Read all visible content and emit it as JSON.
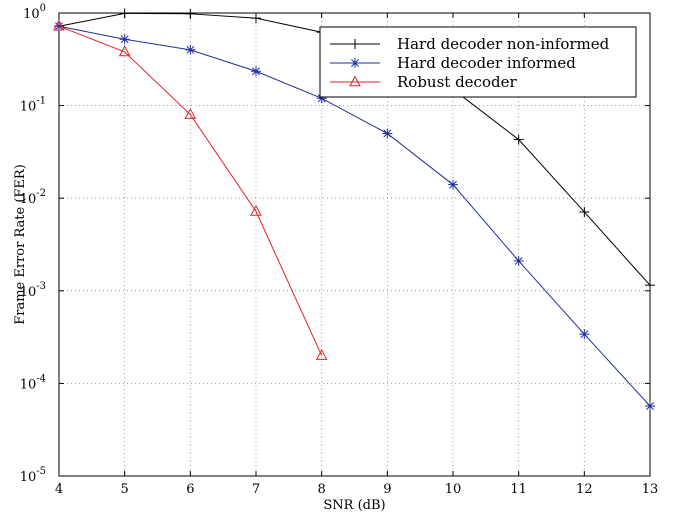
{
  "chart_data": {
    "type": "line",
    "xlabel": "SNR (dB)",
    "ylabel": "Frame Error Rate (FER)",
    "xlim": [
      4,
      13
    ],
    "ylim": [
      1e-05,
      1
    ],
    "yscale": "log",
    "grid": true,
    "legend_position": "top-right",
    "x_ticks": [
      "4",
      "5",
      "6",
      "7",
      "8",
      "9",
      "10",
      "11",
      "12",
      "13"
    ],
    "y_ticks": [
      {
        "base": "10",
        "exp": "0"
      },
      {
        "base": "10",
        "exp": "-1"
      },
      {
        "base": "10",
        "exp": "-2"
      },
      {
        "base": "10",
        "exp": "-3"
      },
      {
        "base": "10",
        "exp": "-4"
      },
      {
        "base": "10",
        "exp": "-5"
      }
    ],
    "series": [
      {
        "name": "Hard decoder non-informed",
        "color": "#000000",
        "marker": "plus",
        "x": [
          4,
          5,
          6,
          7,
          8,
          9,
          10,
          11,
          12,
          13
        ],
        "y": [
          0.72,
          0.99,
          0.98,
          0.88,
          0.62,
          0.34,
          0.15,
          0.043,
          0.0071,
          0.00115
        ]
      },
      {
        "name": "Hard decoder informed",
        "color": "#1f2f9e",
        "marker": "star",
        "x": [
          4,
          5,
          6,
          7,
          8,
          9,
          10,
          11,
          12,
          13
        ],
        "y": [
          0.72,
          0.52,
          0.4,
          0.235,
          0.12,
          0.05,
          0.014,
          0.0021,
          0.00034,
          5.7e-05
        ]
      },
      {
        "name": "Robust decoder",
        "color": "#e0202a",
        "marker": "triangle",
        "x": [
          4,
          5,
          6,
          7,
          8
        ],
        "y": [
          0.72,
          0.38,
          0.08,
          0.0072,
          0.0002
        ]
      }
    ]
  }
}
